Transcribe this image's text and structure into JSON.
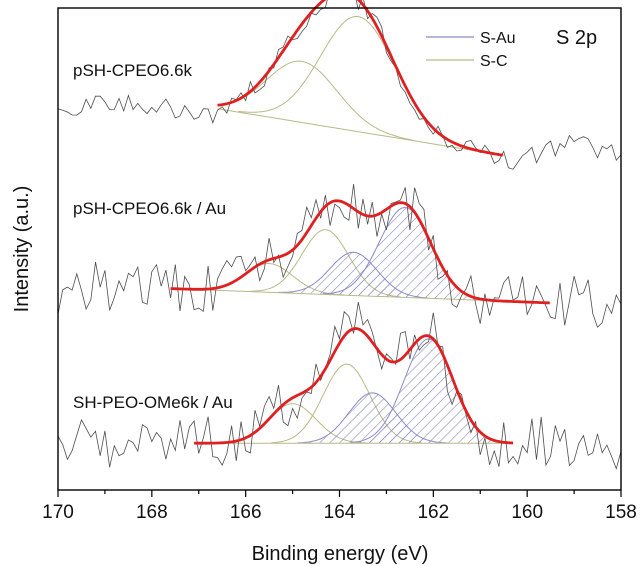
{
  "chart_data": {
    "type": "line",
    "title": "",
    "xlabel": "Binding energy (eV)",
    "ylabel": "Intensity (a.u.)",
    "xlim": [
      170,
      158
    ],
    "x_reversed": true,
    "xticks": [
      "170",
      "168",
      "166",
      "164",
      "162",
      "160",
      "158"
    ],
    "yticks": [],
    "grid": false,
    "annotation": "S 2p",
    "legend": {
      "placement": "top-right",
      "entries": [
        {
          "name": "S-Au",
          "color": "#8a8ac8"
        },
        {
          "name": "S-C",
          "color": "#b9b98a"
        }
      ]
    },
    "traces": [
      {
        "label": "pSH-CPEO6.6k",
        "offset": 8.0,
        "raw_range": [
          170,
          158
        ],
        "fit_range": [
          166.6,
          160.5
        ],
        "baseline": [
          [
            166.6,
            1.4
          ],
          [
            160.5,
            0.1
          ]
        ],
        "components": [
          {
            "type": "S-C",
            "center": 164.8,
            "height": 1.7,
            "width": 0.75
          },
          {
            "type": "S-C",
            "center": 163.6,
            "height": 3.2,
            "width": 0.8
          }
        ]
      },
      {
        "label": "pSH-CPEO6.6k / Au",
        "offset": 4.0,
        "raw_range": [
          170,
          158
        ],
        "fit_range": [
          167.6,
          159.5
        ],
        "baseline": [
          [
            167.6,
            0.4
          ],
          [
            159.5,
            0.0
          ]
        ],
        "components": [
          {
            "type": "S-C",
            "center": 165.5,
            "height": 0.8,
            "width": 0.5
          },
          {
            "type": "S-C",
            "center": 164.3,
            "height": 1.8,
            "width": 0.5
          },
          {
            "type": "S-Au",
            "center": 163.7,
            "height": 1.2,
            "width": 0.5
          },
          {
            "type": "S-Au",
            "center": 162.6,
            "height": 2.5,
            "width": 0.55
          }
        ]
      },
      {
        "label": "SH-PEO-OMe6k / Au",
        "offset": 0.0,
        "raw_range": [
          170,
          158
        ],
        "fit_range": [
          167.1,
          160.3
        ],
        "baseline": [
          [
            167.1,
            0.1
          ],
          [
            160.3,
            0.1
          ]
        ],
        "components": [
          {
            "type": "S-C",
            "center": 165.0,
            "height": 1.1,
            "width": 0.5
          },
          {
            "type": "S-C",
            "center": 163.85,
            "height": 2.2,
            "width": 0.5
          },
          {
            "type": "S-Au",
            "center": 163.3,
            "height": 1.4,
            "width": 0.5
          },
          {
            "type": "S-Au",
            "center": 162.1,
            "height": 2.9,
            "width": 0.52
          }
        ]
      }
    ]
  },
  "colors": {
    "fit": "#e02020",
    "raw": "#4d4d4d",
    "s_au": "#8a8ac8",
    "s_c": "#b9b98a"
  }
}
